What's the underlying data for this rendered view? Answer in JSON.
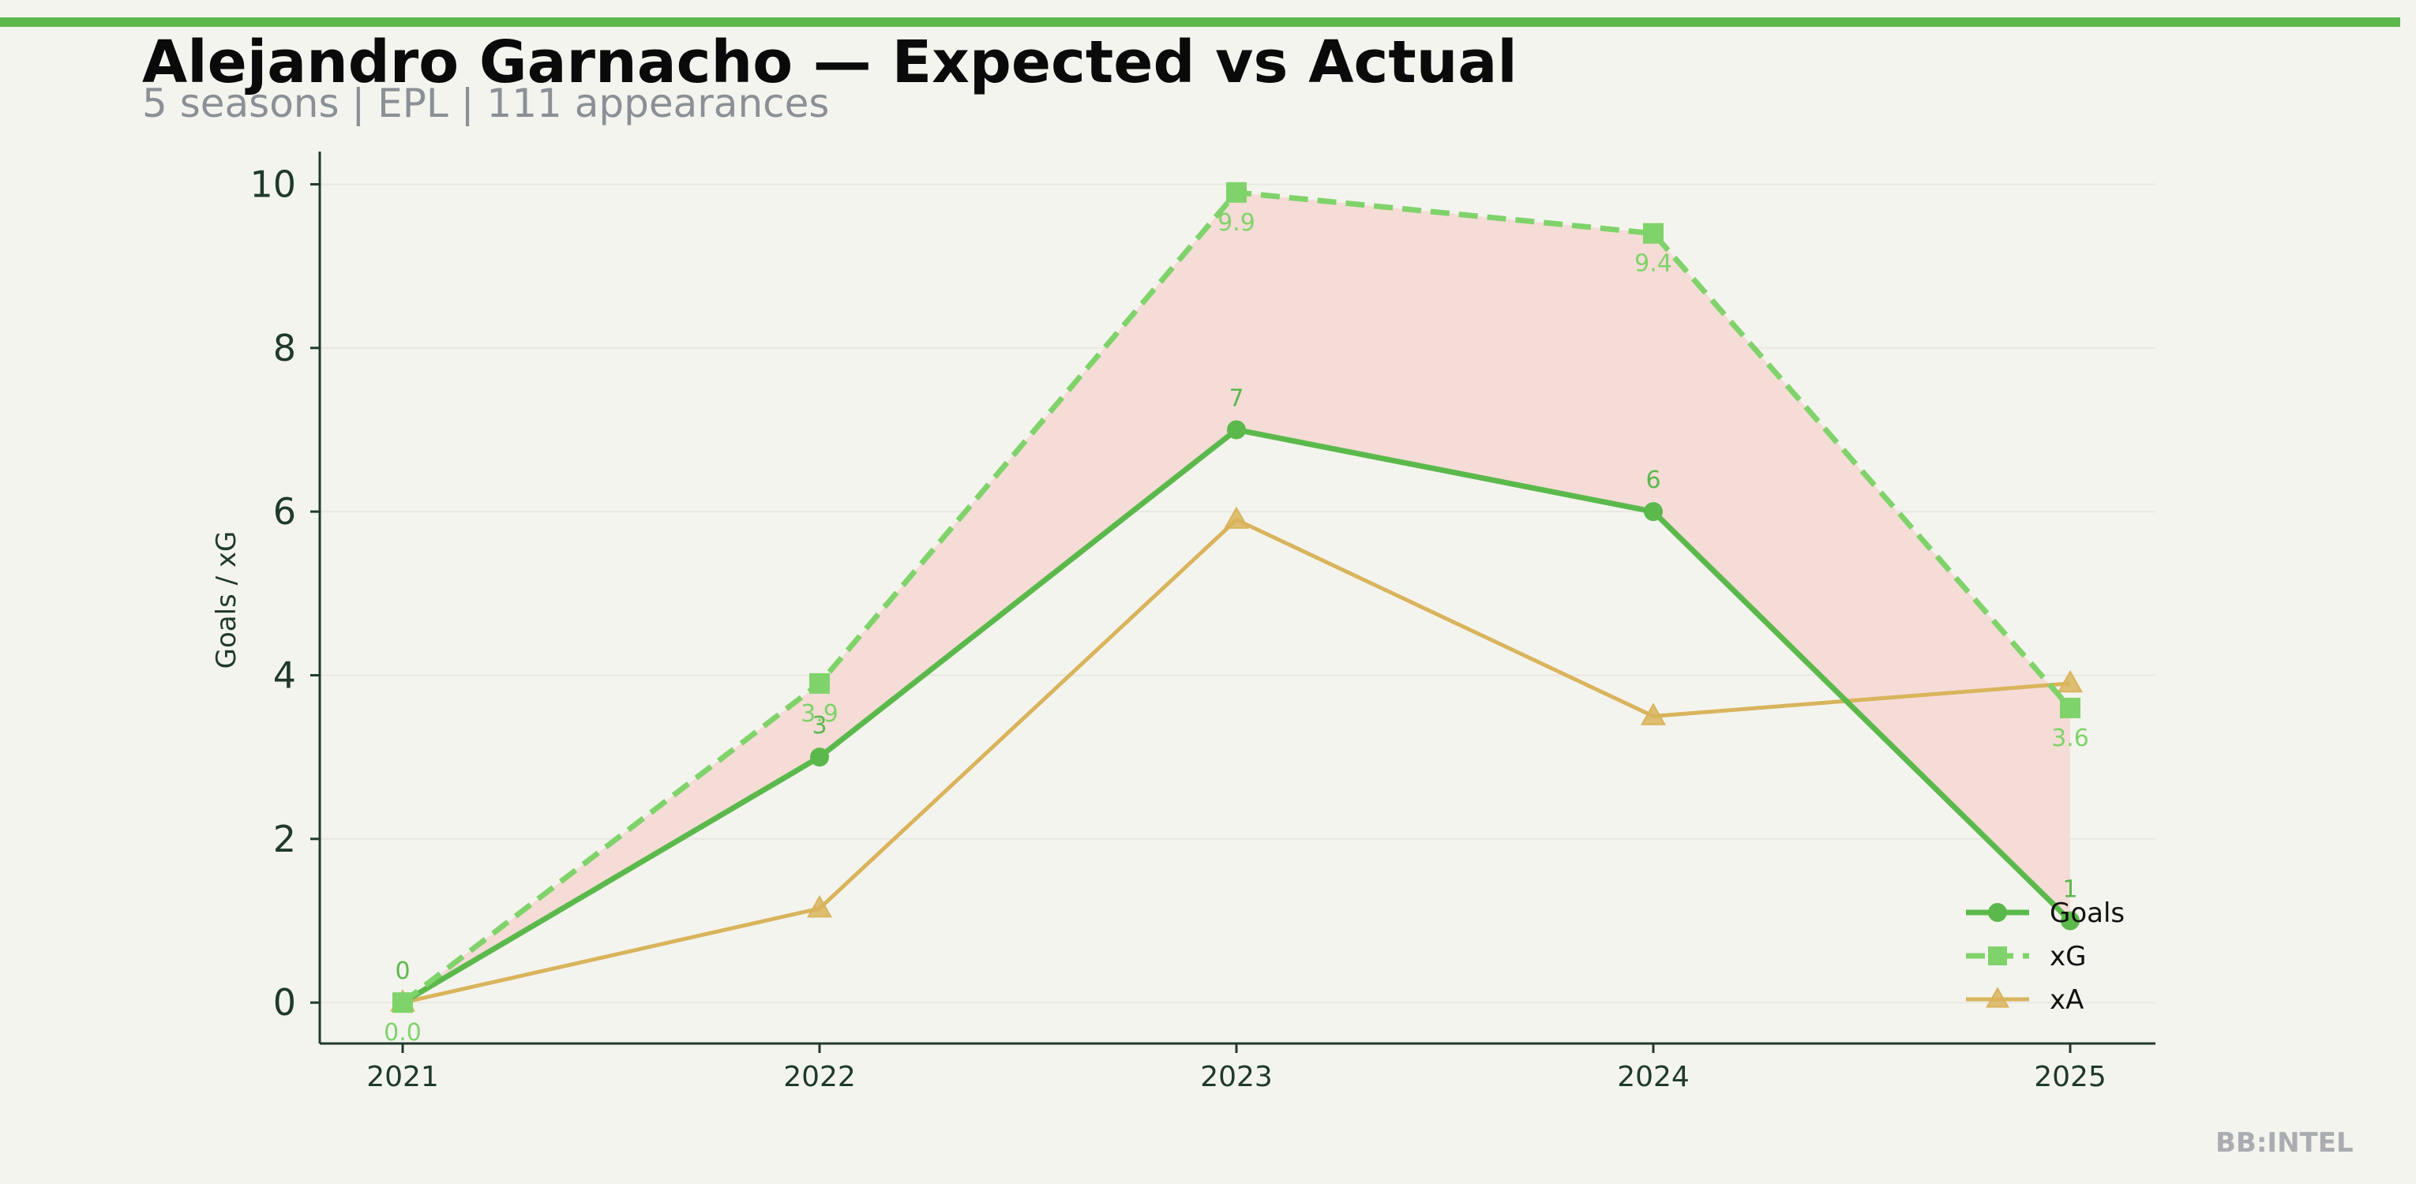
{
  "header": {
    "title": "Alejandro Garnacho — Expected vs Actual",
    "subtitle": "5 seasons | EPL | 111 appearances"
  },
  "watermark": "BB:INTEL",
  "colors": {
    "background": "#f4f4ee",
    "accent_bar": "#5bb94c",
    "goals": "#5bb94c",
    "xg": "#7fd36a",
    "xa": "#d9b45c",
    "gap_fill": "#f5dad4",
    "axis": "#1f3a2a"
  },
  "chart_data": {
    "type": "line",
    "title": "Alejandro Garnacho — Expected vs Actual",
    "subtitle": "5 seasons | EPL | 111 appearances",
    "xlabel": "",
    "ylabel": "Goals / xG",
    "categories": [
      "2021",
      "2022",
      "2023",
      "2024",
      "2025"
    ],
    "yticks": [
      0,
      2,
      4,
      6,
      8,
      10
    ],
    "ylim": [
      -0.5,
      10.4
    ],
    "grid": true,
    "legend_position": "bottom-right",
    "series": [
      {
        "name": "Goals",
        "values": [
          0,
          3,
          7,
          6,
          1
        ],
        "labels": [
          "0",
          "3",
          "7",
          "6",
          "1"
        ],
        "marker": "circle",
        "style": "solid",
        "color": "#5bb94c"
      },
      {
        "name": "xG",
        "values": [
          0.0,
          3.9,
          9.9,
          9.4,
          3.6
        ],
        "labels": [
          "0.0",
          "3.9",
          "9.9",
          "9.4",
          "3.6"
        ],
        "marker": "square",
        "style": "dashed",
        "color": "#7fd36a"
      },
      {
        "name": "xA",
        "values": [
          0.0,
          1.15,
          5.9,
          3.5,
          3.9
        ],
        "marker": "triangle",
        "style": "solid",
        "color": "#d9b45c"
      }
    ],
    "shaded_gap": "between Goals and xG"
  }
}
